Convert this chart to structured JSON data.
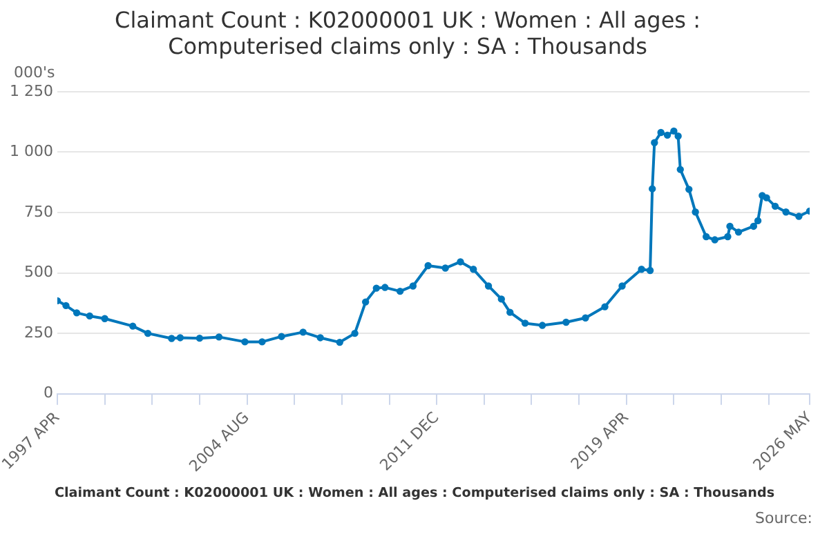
{
  "chart_data": {
    "type": "line",
    "title": "Claimant Count : K02000001 UK : Women : All ages :\nComputerised claims only : SA : Thousands",
    "ylabel": "000's",
    "annotations": [
      "Claimant Count : K02000001 UK : Women : All ages : Computerised claims only : SA : Thousands",
      "Source:"
    ],
    "x": [
      "1997-04",
      "1997-08",
      "1998-01",
      "1998-07",
      "1999-02",
      "2000-03",
      "2000-10",
      "2001-09",
      "2002-01",
      "2002-10",
      "2003-07",
      "2004-07",
      "2005-03",
      "2005-12",
      "2006-10",
      "2007-06",
      "2008-03",
      "2008-10",
      "2009-03",
      "2009-08",
      "2009-12",
      "2010-07",
      "2011-01",
      "2011-08",
      "2012-04",
      "2012-11",
      "2013-05",
      "2013-12",
      "2014-06",
      "2014-10",
      "2015-05",
      "2016-01",
      "2016-12",
      "2017-09",
      "2018-06",
      "2019-02",
      "2019-11",
      "2020-03",
      "2020-04",
      "2020-05",
      "2020-08",
      "2020-11",
      "2021-02",
      "2021-04",
      "2021-05",
      "2021-09",
      "2021-12",
      "2022-05",
      "2022-09",
      "2023-03",
      "2023-04",
      "2023-08",
      "2024-03",
      "2024-05",
      "2024-07",
      "2024-09",
      "2025-01",
      "2025-06",
      "2025-12",
      "2026-05"
    ],
    "series": [
      {
        "color": "#0077bb",
        "values": [
          385,
          365,
          335,
          322,
          311,
          280,
          250,
          229,
          232,
          230,
          235,
          215,
          215,
          237,
          255,
          232,
          213,
          250,
          380,
          437,
          440,
          424,
          446,
          530,
          520,
          546,
          515,
          446,
          392,
          337,
          292,
          283,
          296,
          314,
          360,
          446,
          515,
          510,
          848,
          1039,
          1081,
          1070,
          1087,
          1066,
          928,
          846,
          752,
          650,
          637,
          650,
          693,
          669,
          693,
          716,
          820,
          811,
          776,
          752,
          734,
          756
        ]
      }
    ],
    "xlim": [
      "1997-04",
      "2026-05"
    ],
    "xticks": [
      {
        "value": "1997-04",
        "label": "1997 APR"
      },
      {
        "value": "1999-02",
        "label": null
      },
      {
        "value": "2000-12",
        "label": null
      },
      {
        "value": "2002-10",
        "label": null
      },
      {
        "value": "2004-08",
        "label": "2004 AUG"
      },
      {
        "value": "2006-06",
        "label": null
      },
      {
        "value": "2008-04",
        "label": null
      },
      {
        "value": "2010-02",
        "label": null
      },
      {
        "value": "2011-12",
        "label": "2011 DEC"
      },
      {
        "value": "2013-10",
        "label": null
      },
      {
        "value": "2015-08",
        "label": null
      },
      {
        "value": "2017-06",
        "label": null
      },
      {
        "value": "2019-04",
        "label": "2019 APR"
      },
      {
        "value": "2021-02",
        "label": null
      },
      {
        "value": "2022-12",
        "label": null
      },
      {
        "value": "2024-10",
        "label": null
      },
      {
        "value": "2026-05",
        "label": "2026 MAY"
      }
    ],
    "ylim": [
      0,
      1250
    ],
    "yticks": [
      0,
      250,
      500,
      750,
      {
        "value": 1000,
        "label": "1 000"
      },
      {
        "value": 1250,
        "label": "1 250"
      }
    ],
    "grid": "y",
    "legend": false,
    "marker": "circle",
    "line_style": "solid"
  }
}
